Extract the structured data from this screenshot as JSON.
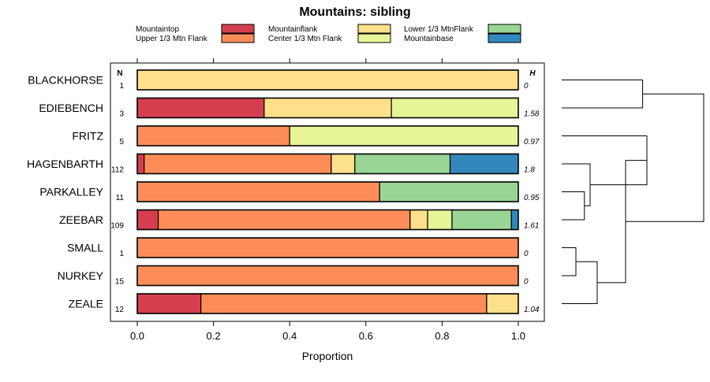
{
  "chart_data": {
    "type": "bar",
    "subtype": "stacked-horizontal-proportion",
    "title": "Mountains: sibling",
    "xlabel": "Proportion",
    "ylabel": "",
    "xlim": [
      0,
      1
    ],
    "xticks": [
      0,
      0.2,
      0.4,
      0.6,
      0.8,
      1
    ],
    "xtick_labels": [
      "0.0",
      "0.2",
      "0.4",
      "0.6",
      "0.8",
      "1.0"
    ],
    "n_header": "N",
    "h_header": "H",
    "legend": [
      {
        "name": "Mountaintop",
        "color": "#d53e4f"
      },
      {
        "name": "Upper 1/3 Mtn Flank",
        "color": "#fc8d59"
      },
      {
        "name": "Mountainflank",
        "color": "#fee08b"
      },
      {
        "name": "Center 1/3 Mtn Flank",
        "color": "#e6f598"
      },
      {
        "name": "Lower 1/3 MtnFlank",
        "color": "#99d594"
      },
      {
        "name": "Mountainbase",
        "color": "#3288bd"
      }
    ],
    "categories": [
      "BLACKHORSE",
      "EDIEBENCH",
      "FRITZ",
      "HAGENBARTH",
      "PARKALLEY",
      "ZEEBAR",
      "SMALL",
      "NURKEY",
      "ZEALE"
    ],
    "rows": [
      {
        "label": "BLACKHORSE",
        "n": "1",
        "h": "0",
        "segments": [
          {
            "series": "Mountainflank",
            "value": 1.0
          }
        ]
      },
      {
        "label": "EDIEBENCH",
        "n": "3",
        "h": "1.58",
        "segments": [
          {
            "series": "Mountaintop",
            "value": 0.333
          },
          {
            "series": "Mountainflank",
            "value": 0.334
          },
          {
            "series": "Center 1/3 Mtn Flank",
            "value": 0.333
          }
        ]
      },
      {
        "label": "FRITZ",
        "n": "5",
        "h": "0.97",
        "segments": [
          {
            "series": "Upper 1/3 Mtn Flank",
            "value": 0.4
          },
          {
            "series": "Center 1/3 Mtn Flank",
            "value": 0.6
          }
        ]
      },
      {
        "label": "HAGENBARTH",
        "n": "112",
        "h": "1.8",
        "segments": [
          {
            "series": "Mountaintop",
            "value": 0.018
          },
          {
            "series": "Upper 1/3 Mtn Flank",
            "value": 0.491
          },
          {
            "series": "Mountainflank",
            "value": 0.062
          },
          {
            "series": "Lower 1/3 MtnFlank",
            "value": 0.25
          },
          {
            "series": "Mountainbase",
            "value": 0.179
          }
        ]
      },
      {
        "label": "PARKALLEY",
        "n": "11",
        "h": "0.95",
        "segments": [
          {
            "series": "Upper 1/3 Mtn Flank",
            "value": 0.636
          },
          {
            "series": "Lower 1/3 MtnFlank",
            "value": 0.364
          }
        ]
      },
      {
        "label": "ZEEBAR",
        "n": "109",
        "h": "1.61",
        "segments": [
          {
            "series": "Mountaintop",
            "value": 0.055
          },
          {
            "series": "Upper 1/3 Mtn Flank",
            "value": 0.661
          },
          {
            "series": "Mountainflank",
            "value": 0.046
          },
          {
            "series": "Center 1/3 Mtn Flank",
            "value": 0.064
          },
          {
            "series": "Lower 1/3 MtnFlank",
            "value": 0.156
          },
          {
            "series": "Mountainbase",
            "value": 0.018
          }
        ]
      },
      {
        "label": "SMALL",
        "n": "1",
        "h": "0",
        "segments": [
          {
            "series": "Upper 1/3 Mtn Flank",
            "value": 1.0
          }
        ]
      },
      {
        "label": "NURKEY",
        "n": "15",
        "h": "0",
        "segments": [
          {
            "series": "Upper 1/3 Mtn Flank",
            "value": 1.0
          }
        ]
      },
      {
        "label": "ZEALE",
        "n": "12",
        "h": "1.04",
        "segments": [
          {
            "series": "Mountaintop",
            "value": 0.167
          },
          {
            "series": "Upper 1/3 Mtn Flank",
            "value": 0.75
          },
          {
            "series": "Mountainflank",
            "value": 0.083
          }
        ]
      }
    ],
    "dendrogram": {
      "leaves": [
        "BLACKHORSE",
        "EDIEBENCH",
        "FRITZ",
        "HAGENBARTH",
        "PARKALLEY",
        "ZEEBAR",
        "SMALL",
        "NURKEY",
        "ZEALE"
      ],
      "merges": [
        {
          "a": "leaf:6",
          "b": "leaf:7",
          "height": 0.1
        },
        {
          "a": "leaf:4",
          "b": "leaf:5",
          "height": 0.16
        },
        {
          "a": "leaf:3",
          "b": "node:1",
          "height": 0.2
        },
        {
          "a": "node:0",
          "b": "leaf:8",
          "height": 0.25
        },
        {
          "a": "leaf:0",
          "b": "leaf:1",
          "height": 0.57
        },
        {
          "a": "leaf:2",
          "b": "node:2",
          "height": 0.6
        },
        {
          "a": "node:5",
          "b": "node:3",
          "height": 0.45
        },
        {
          "a": "node:4",
          "b": "node:6",
          "height": 1.0
        }
      ]
    }
  }
}
